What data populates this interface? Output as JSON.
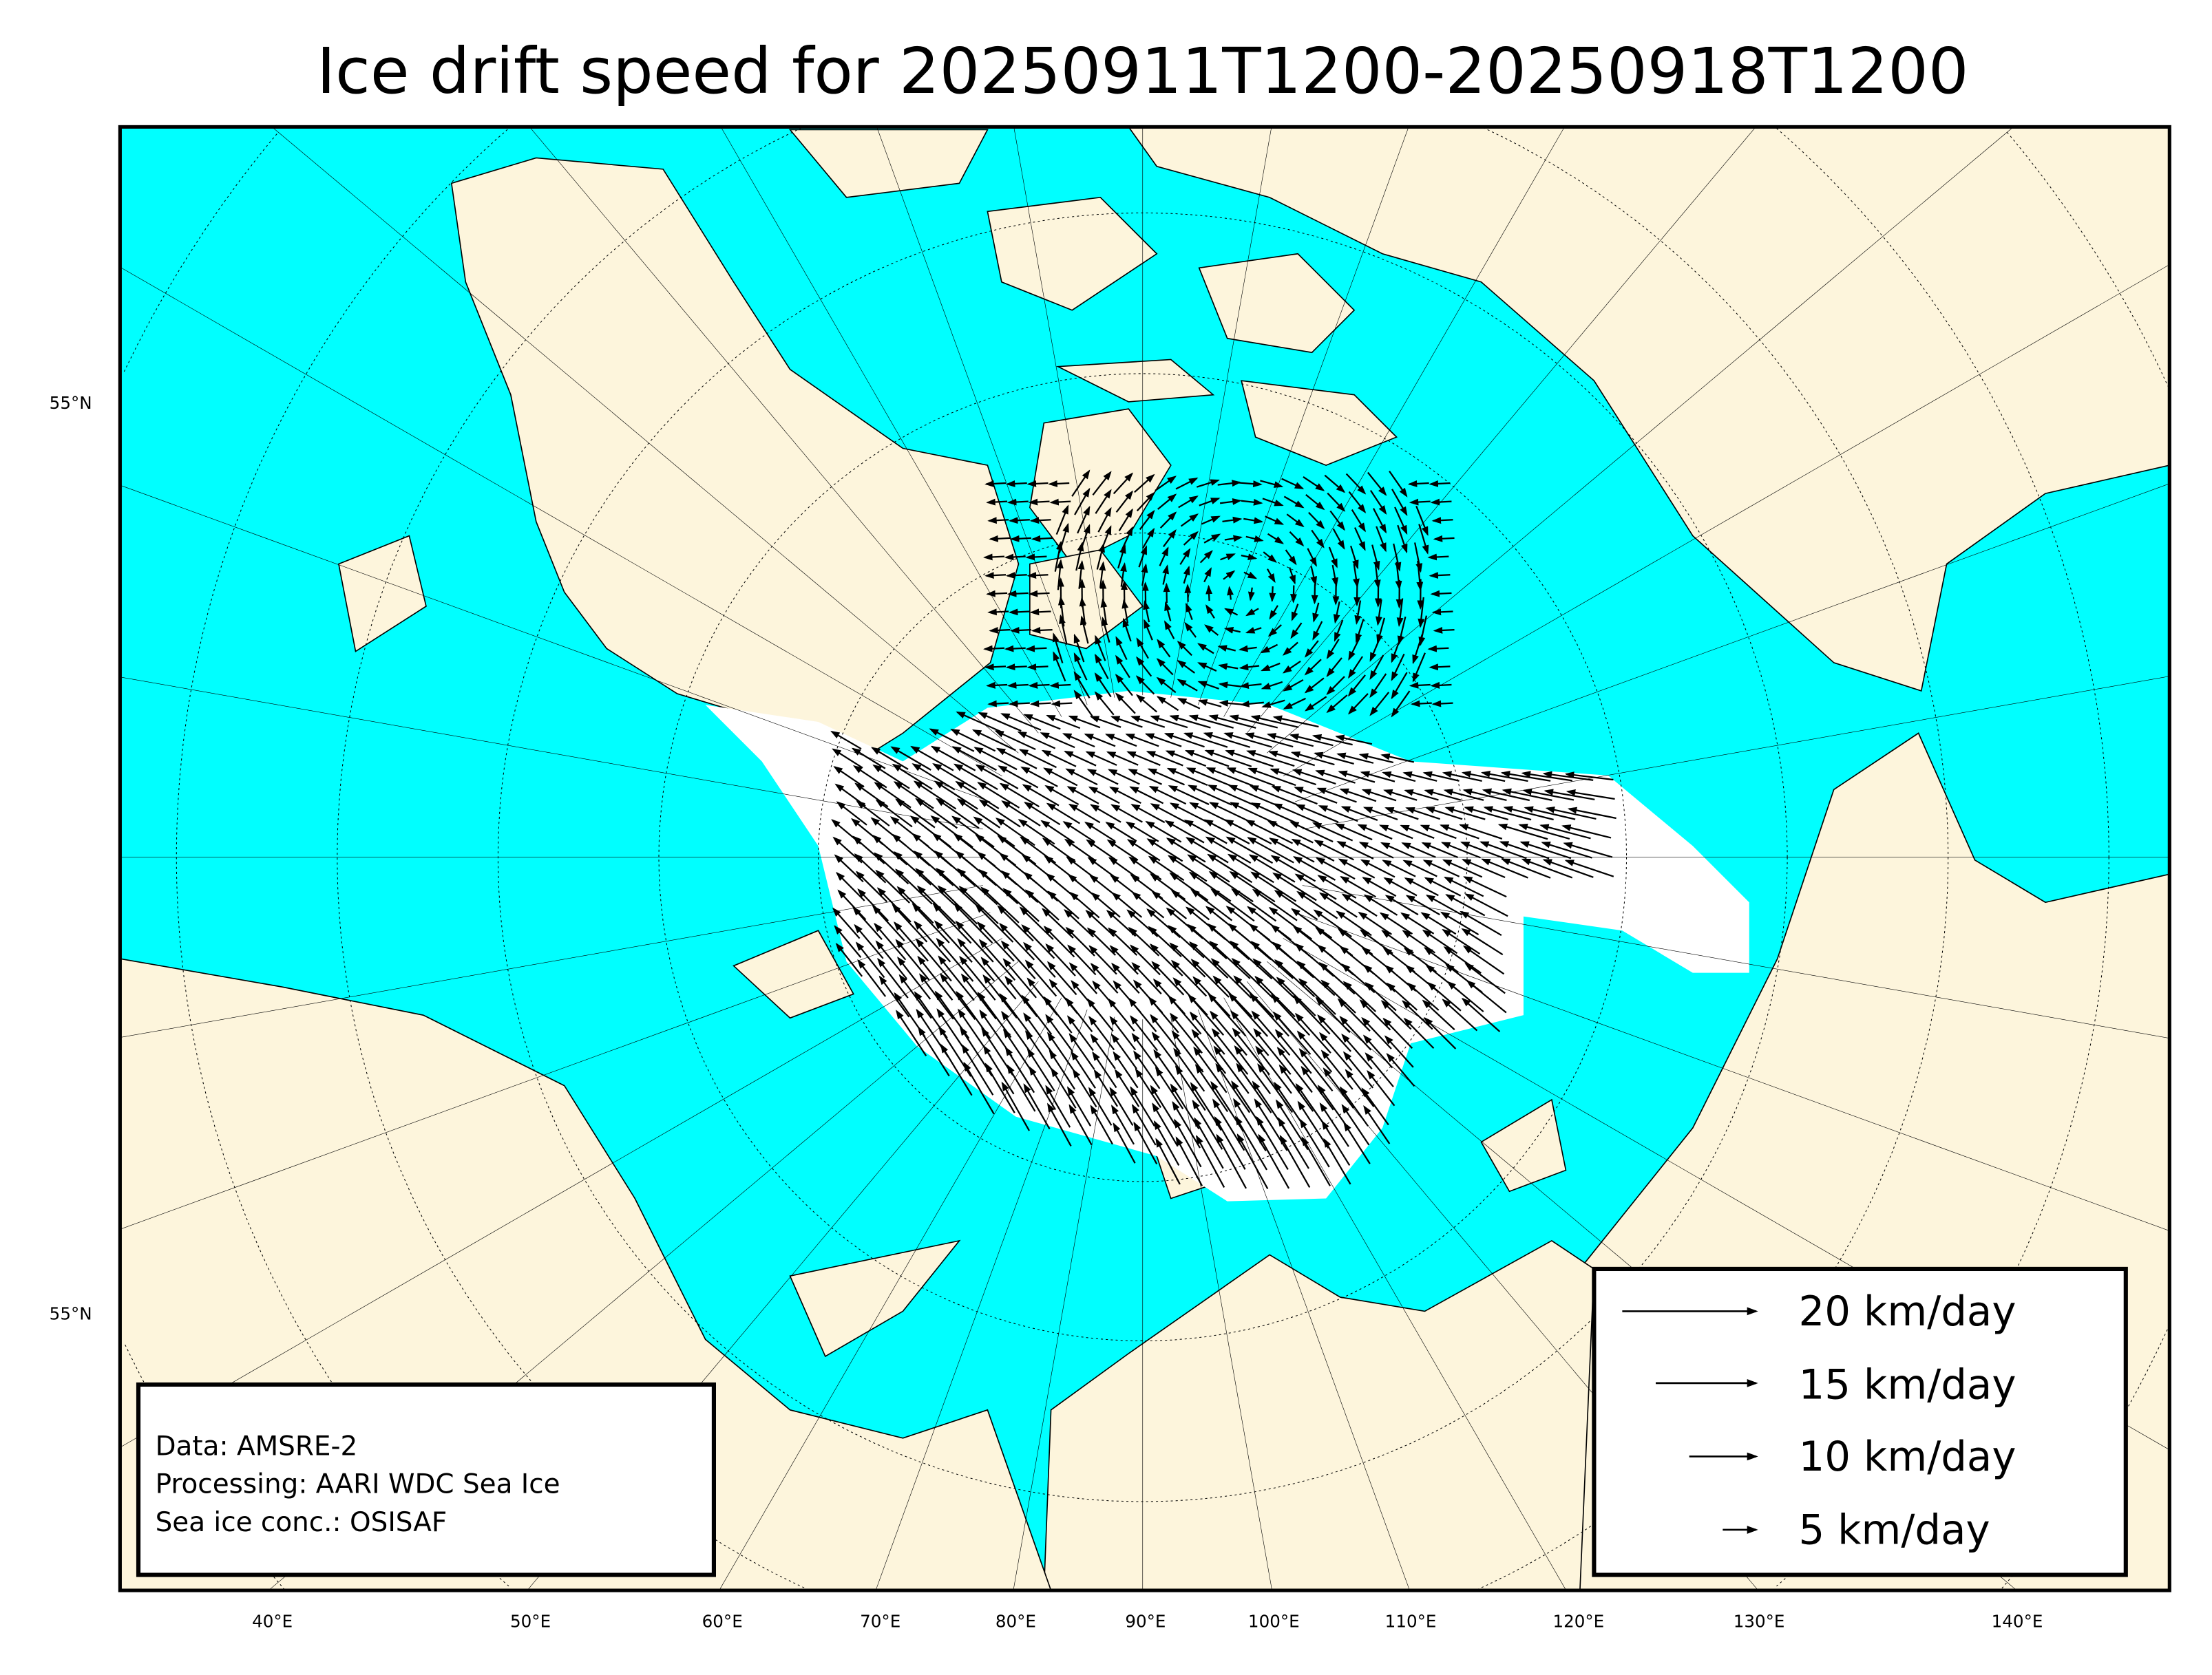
{
  "title": "Ice drift speed for 20250911T1200-20250918T1200",
  "colors": {
    "ocean": "#00ffff",
    "land": "#fdf5dc",
    "ice": "#ffffff",
    "arrows": "#000000"
  },
  "lat_labels": [
    "55°N",
    "55°N"
  ],
  "lon_labels": [
    "40°E",
    "50°E",
    "60°E",
    "70°E",
    "80°E",
    "90°E",
    "100°E",
    "110°E",
    "120°E",
    "130°E",
    "140°E"
  ],
  "info_box": {
    "line1": "Data: AMSRE-2",
    "line2": "Processing: AARI WDC Sea Ice",
    "line3": "Sea ice conc.: OSISAF"
  },
  "legend": [
    {
      "label": "20 km/day",
      "speed": 20
    },
    {
      "label": "15 km/day",
      "speed": 15
    },
    {
      "label": "10 km/day",
      "speed": 10
    },
    {
      "label": "5 km/day",
      "speed": 5
    }
  ]
}
